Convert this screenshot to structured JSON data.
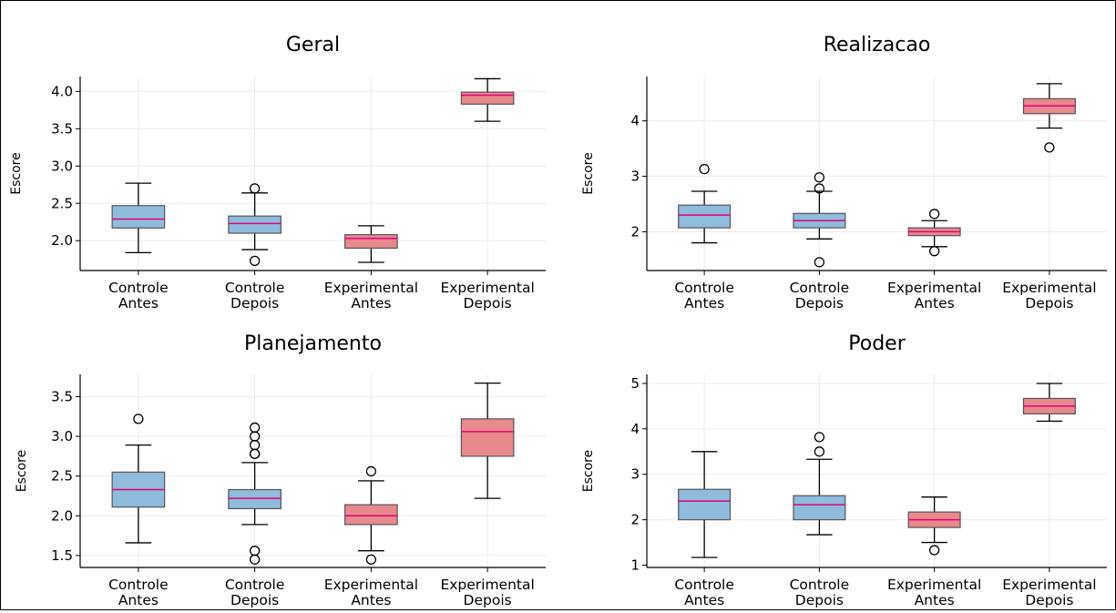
{
  "colors": {
    "controle_box": "#8fbbdd",
    "experimental_box": "#e8898d",
    "median": "#e0007a",
    "whisker": "#000000",
    "grid": "#ececec",
    "box_edge": "#555555"
  },
  "chart_data": [
    {
      "type": "box",
      "title": "Geral",
      "ylabel": "",
      "ylim": [
        1.6,
        4.2
      ],
      "yticks": [
        "2.0",
        "2.5",
        "3.0",
        "3.5",
        "4.0"
      ],
      "categories": [
        "Controle\nAntes",
        "Controle\nDepois",
        "Experimental\nAntes",
        "Experimental\nDepois"
      ],
      "boxes": [
        {
          "group": "Controle",
          "whislo": 1.84,
          "q1": 2.17,
          "med": 2.29,
          "q3": 2.47,
          "whishi": 2.77,
          "fliers": []
        },
        {
          "group": "Controle",
          "whislo": 1.88,
          "q1": 2.1,
          "med": 2.23,
          "q3": 2.33,
          "whishi": 2.64,
          "fliers": [
            2.7,
            1.73
          ]
        },
        {
          "group": "Experimental",
          "whislo": 1.71,
          "q1": 1.9,
          "med": 2.03,
          "q3": 2.08,
          "whishi": 2.2,
          "fliers": []
        },
        {
          "group": "Experimental",
          "whislo": 3.6,
          "q1": 3.83,
          "med": 3.95,
          "q3": 3.99,
          "whishi": 4.17,
          "fliers": []
        }
      ]
    },
    {
      "type": "box",
      "title": "Realizacao",
      "ylabel": "Escore",
      "ylim": [
        1.3,
        4.8
      ],
      "yticks": [
        "2",
        "3",
        "4"
      ],
      "categories": [
        "Controle\nAntes",
        "Controle\nDepois",
        "Experimental\nAntes",
        "Experimental\nDepois"
      ],
      "boxes": [
        {
          "group": "Controle",
          "whislo": 1.8,
          "q1": 2.07,
          "med": 2.3,
          "q3": 2.48,
          "whishi": 2.73,
          "fliers": [
            3.13
          ]
        },
        {
          "group": "Controle",
          "whislo": 1.87,
          "q1": 2.07,
          "med": 2.2,
          "q3": 2.33,
          "whishi": 2.73,
          "fliers": [
            2.98,
            2.78,
            1.45
          ]
        },
        {
          "group": "Experimental",
          "whislo": 1.73,
          "q1": 1.93,
          "med": 2.0,
          "q3": 2.07,
          "whishi": 2.2,
          "fliers": [
            2.32,
            1.65
          ]
        },
        {
          "group": "Experimental",
          "whislo": 3.87,
          "q1": 4.13,
          "med": 4.27,
          "q3": 4.4,
          "whishi": 4.67,
          "fliers": [
            3.52
          ]
        }
      ]
    },
    {
      "type": "box",
      "title": "Planejamento",
      "ylabel": "Escore",
      "ylim": [
        1.35,
        3.78
      ],
      "yticks": [
        "1.5",
        "2.0",
        "2.5",
        "3.0",
        "3.5"
      ],
      "categories": [
        "Controle\nAntes",
        "Controle\nDepois",
        "Experimental\nAntes",
        "Experimental\nDepois"
      ],
      "boxes": [
        {
          "group": "Controle",
          "whislo": 1.66,
          "q1": 2.11,
          "med": 2.33,
          "q3": 2.55,
          "whishi": 2.89,
          "fliers": [
            3.22
          ]
        },
        {
          "group": "Controle",
          "whislo": 1.89,
          "q1": 2.09,
          "med": 2.22,
          "q3": 2.33,
          "whishi": 2.67,
          "fliers": [
            3.11,
            3.0,
            2.89,
            2.78,
            2.78,
            1.56,
            1.45
          ]
        },
        {
          "group": "Experimental",
          "whislo": 1.56,
          "q1": 1.89,
          "med": 2.0,
          "q3": 2.14,
          "whishi": 2.44,
          "fliers": [
            2.56,
            1.45
          ]
        },
        {
          "group": "Experimental",
          "whislo": 2.22,
          "q1": 2.75,
          "med": 3.06,
          "q3": 3.22,
          "whishi": 3.67,
          "fliers": []
        }
      ]
    },
    {
      "type": "box",
      "title": "Poder",
      "ylabel": "Escore",
      "ylim": [
        0.95,
        5.2
      ],
      "yticks": [
        "1",
        "2",
        "3",
        "4",
        "5"
      ],
      "categories": [
        "Controle\nAntes",
        "Controle\nDepois",
        "Experimental\nAntes",
        "Experimental\nDepois"
      ],
      "boxes": [
        {
          "group": "Controle",
          "whislo": 1.17,
          "q1": 2.0,
          "med": 2.41,
          "q3": 2.67,
          "whishi": 3.5,
          "fliers": []
        },
        {
          "group": "Controle",
          "whislo": 1.67,
          "q1": 2.0,
          "med": 2.33,
          "q3": 2.53,
          "whishi": 3.33,
          "fliers": [
            3.82,
            3.5
          ]
        },
        {
          "group": "Experimental",
          "whislo": 1.5,
          "q1": 1.83,
          "med": 2.0,
          "q3": 2.17,
          "whishi": 2.5,
          "fliers": [
            1.33
          ]
        },
        {
          "group": "Experimental",
          "whislo": 4.17,
          "q1": 4.33,
          "med": 4.5,
          "q3": 4.67,
          "whishi": 5.0,
          "fliers": []
        }
      ]
    }
  ]
}
